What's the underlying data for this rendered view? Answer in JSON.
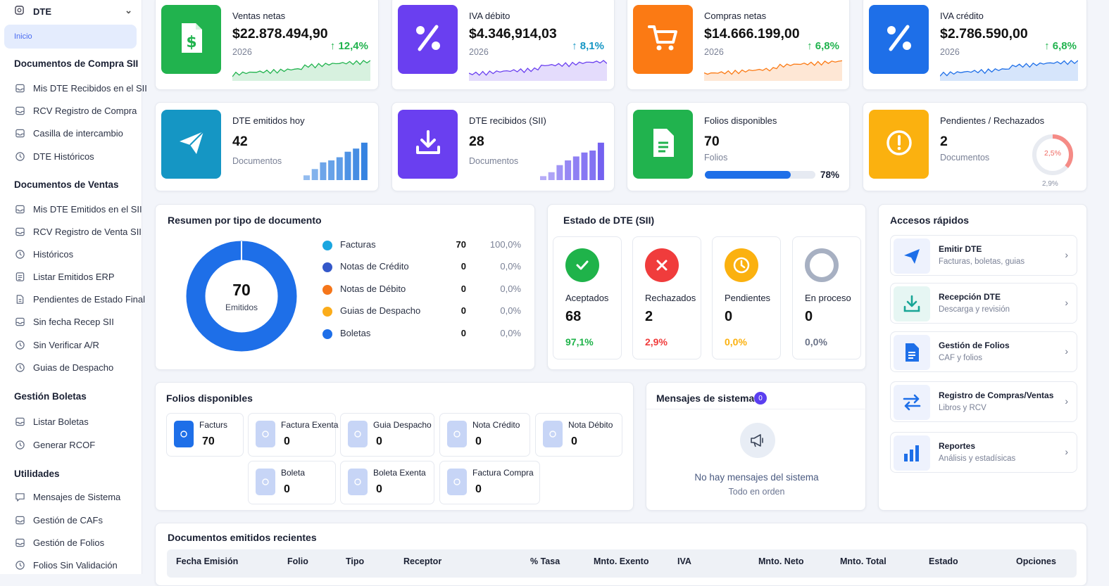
{
  "colors": {
    "green": "#21b34e",
    "purple": "#6a3ff0",
    "orange": "#fb7a14",
    "blue": "#1e6fe8",
    "teal": "#1596c4",
    "yellow": "#fbb10f",
    "red": "#f03c3c",
    "gray": "#cfd6e2"
  },
  "sidebar": {
    "top": {
      "label": "DTE",
      "icon": "dte-icon"
    },
    "active_item": "Inicio",
    "sections": [
      {
        "title": "Documentos de Compra SII",
        "items": [
          {
            "label": "Mis DTE Recibidos en el SII",
            "icon": "inbox-icon"
          },
          {
            "label": "RCV Registro de Compra",
            "icon": "inbox-icon"
          },
          {
            "label": "Casilla de intercambio",
            "icon": "inbox-icon"
          },
          {
            "label": "DTE Históricos",
            "icon": "history-icon"
          }
        ]
      },
      {
        "title": "Documentos de Ventas",
        "items": [
          {
            "label": "Mis DTE Emitidos en el SII",
            "icon": "inbox-icon"
          },
          {
            "label": "RCV Registro de Venta SII",
            "icon": "inbox-icon"
          },
          {
            "label": "Históricos",
            "icon": "history-icon"
          },
          {
            "label": "Listar Emitidos ERP",
            "icon": "list-icon"
          },
          {
            "label": "Pendientes de Estado Final",
            "icon": "doc-icon"
          },
          {
            "label": "Sin fecha Recep SII",
            "icon": "inbox-icon"
          },
          {
            "label": "Sin Verificar A/R",
            "icon": "history-icon"
          },
          {
            "label": "Guias de Despacho",
            "icon": "history-icon"
          }
        ]
      },
      {
        "title": "Gestión Boletas",
        "items": [
          {
            "label": "Listar Boletas",
            "icon": "inbox-icon"
          },
          {
            "label": "Generar RCOF",
            "icon": "history-icon"
          }
        ]
      },
      {
        "title": "Utilidades",
        "items": [
          {
            "label": "Mensajes de Sistema",
            "icon": "message-icon"
          },
          {
            "label": "Gestión de CAFs",
            "icon": "inbox-icon"
          },
          {
            "label": "Gestión de Folios",
            "icon": "inbox-icon"
          },
          {
            "label": "Folios Sin Validación",
            "icon": "history-icon"
          }
        ]
      }
    ]
  },
  "kpi_row1": [
    {
      "title": "Ventas netas",
      "value": "$22.878.494,90",
      "sub": "2026",
      "trend": "12,4%",
      "color": "green",
      "icon": "dollar-doc-icon"
    },
    {
      "title": "IVA débito",
      "value": "$4.346,914,03",
      "sub": "2026",
      "trend": "8,1%",
      "color": "purple",
      "icon": "percent-icon"
    },
    {
      "title": "Compras netas",
      "value": "$14.666.199,00",
      "sub": "2026",
      "trend": "6,8%",
      "color": "orange",
      "icon": "cart-icon"
    },
    {
      "title": "IVA crédito",
      "value": "$2.786.590,00",
      "sub": "2026",
      "trend": "6,8%",
      "color": "blue",
      "icon": "percent-icon"
    }
  ],
  "kpi_row2": [
    {
      "title": "DTE emitidos hoy",
      "value": "42",
      "sub": "Documentos",
      "color": "teal",
      "icon": "send-icon",
      "bars": [
        0.12,
        0.28,
        0.45,
        0.5,
        0.58,
        0.72,
        0.8,
        0.95
      ]
    },
    {
      "title": "DTE recibidos (SII)",
      "value": "28",
      "sub": "Documentos",
      "color": "purple",
      "icon": "download-icon",
      "bars": [
        0.1,
        0.2,
        0.38,
        0.5,
        0.6,
        0.7,
        0.75,
        0.95
      ]
    },
    {
      "title": "Folios disponibles",
      "value": "70",
      "sub": "Folios",
      "color": "green",
      "icon": "document-icon",
      "progress": 0.78,
      "progress_label": "78%"
    },
    {
      "title": "Pendientes / Rechazados",
      "value": "2",
      "sub": "Documentos",
      "color": "yellow",
      "icon": "alert-icon",
      "ring_label": "2,5%",
      "ring_sub": "2,9%",
      "ring": 0.29
    }
  ],
  "resumen": {
    "title": "Resumen por tipo de documento",
    "donut_value": "70",
    "donut_label": "Emitidos",
    "rows": [
      {
        "label": "Facturas",
        "count": "70",
        "pct": "100,0%",
        "color": "#1aa6e0"
      },
      {
        "label": "Notas de Crédito",
        "count": "0",
        "pct": "0,0%",
        "color": "#3458c9"
      },
      {
        "label": "Notas de Débito",
        "count": "0",
        "pct": "0,0%",
        "color": "#f5761a"
      },
      {
        "label": "Guias de Despacho",
        "count": "0",
        "pct": "0,0%",
        "color": "#fbac1a"
      },
      {
        "label": "Boletas",
        "count": "0",
        "pct": "0,0%",
        "color": "#1e6fe8"
      }
    ]
  },
  "estado": {
    "title": "Estado de DTE (SII)",
    "cards": [
      {
        "label": "Aceptados",
        "count": "68",
        "pct": "97,1%",
        "color": "#1fb34a",
        "icon": "check-icon"
      },
      {
        "label": "Rechazados",
        "count": "2",
        "pct": "2,9%",
        "color": "#f03c3c",
        "icon": "x-icon"
      },
      {
        "label": "Pendientes",
        "count": "0",
        "pct": "0,0%",
        "color": "#fbb10f",
        "icon": "clock-icon"
      },
      {
        "label": "En proceso",
        "count": "0",
        "pct": "0,0%",
        "color": "#a7b0c2",
        "icon": "ring-icon"
      }
    ]
  },
  "accesos": {
    "title": "Accesos rápidos",
    "items": [
      {
        "title": "Emitir DTE",
        "sub": "Facturas, boletas, guias",
        "icon": "send-icon"
      },
      {
        "title": "Recepción DTE",
        "sub": "Descarga y revisión",
        "icon": "download-icon"
      },
      {
        "title": "Gestión de Folios",
        "sub": "CAF y folios",
        "icon": "document-icon"
      },
      {
        "title": "Registro de Compras/Ventas",
        "sub": "Libros y RCV",
        "icon": "swap-icon"
      },
      {
        "title": "Reportes",
        "sub": "Análisis y estadísicas",
        "icon": "bar-chart-icon"
      }
    ]
  },
  "folios": {
    "title": "Folios disponibles",
    "items": [
      {
        "label": "Facturs",
        "value": "70",
        "active": true
      },
      {
        "label": "Factura Exenta",
        "value": "0"
      },
      {
        "label": "Guia Despacho",
        "value": "0"
      },
      {
        "label": "Nota Crédito",
        "value": "0"
      },
      {
        "label": "Nota Débito",
        "value": "0"
      },
      {
        "label": "Boleta",
        "value": "0"
      },
      {
        "label": "Boleta Exenta",
        "value": "0"
      },
      {
        "label": "Factura Compra",
        "value": "0"
      }
    ]
  },
  "mensajes": {
    "title": "Mensajes de sistema",
    "badge": "0",
    "empty_title": "No hay mensajes del sistema",
    "empty_sub": "Todo en orden"
  },
  "recientes": {
    "title": "Documentos emitidos recientes",
    "columns": [
      "Fecha Emisión",
      "Folio",
      "Tipo",
      "Receptor",
      "% Tasa",
      "Mnto. Exento",
      "IVA",
      "Mnto. Neto",
      "Mnto. Total",
      "Estado",
      "Opciones"
    ]
  }
}
